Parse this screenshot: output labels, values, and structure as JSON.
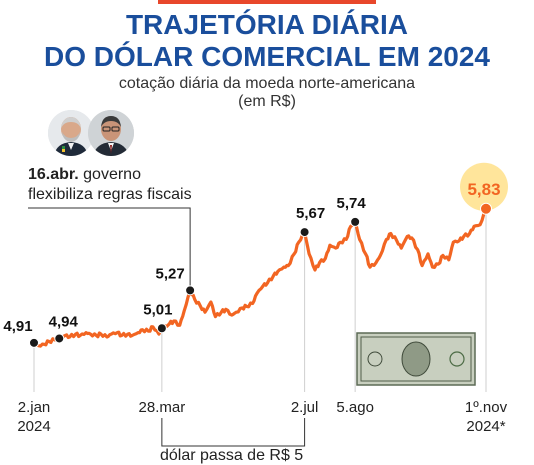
{
  "header": {
    "title_line1": "TRAJETÓRIA DIÁRIA",
    "title_line2": "DO DÓLAR COMERCIAL EM 2024",
    "subtitle_line1": "cotação diária da moeda norte-americana",
    "subtitle_line2": "(em R$)"
  },
  "annotations": {
    "april_date": "16.abr.",
    "april_text1": " governo",
    "april_text2": "flexibiliza regras fiscais",
    "march_text": "dólar passa de R$ 5"
  },
  "colors": {
    "line": "#f26522",
    "title": "#1a4e9c",
    "highlight": "#ffe08a",
    "accent": "#e8472b"
  },
  "chart_data": {
    "type": "line",
    "title": "TRAJETÓRIA DIÁRIA DO DÓLAR COMERCIAL EM 2024",
    "subtitle": "cotação diária da moeda norte-americana (em R$)",
    "ylim": [
      4.6,
      6.0
    ],
    "x_ticks": [
      {
        "date": "2024-01-02",
        "label1": "2.jan",
        "label2": "2024"
      },
      {
        "date": "2024-03-28",
        "label1": "28.mar",
        "label2": ""
      },
      {
        "date": "2024-07-02",
        "label1": "2.jul",
        "label2": ""
      },
      {
        "date": "2024-08-05",
        "label1": "5.ago",
        "label2": ""
      },
      {
        "date": "2024-11-01",
        "label1": "1º.nov",
        "label2": "2024*"
      }
    ],
    "labeled_points": [
      {
        "date": "2024-01-02",
        "value": 4.91,
        "label": "4,91"
      },
      {
        "date": "2024-01-19",
        "value": 4.94,
        "label": "4,94"
      },
      {
        "date": "2024-03-28",
        "value": 5.01,
        "label": "5,01"
      },
      {
        "date": "2024-04-16",
        "value": 5.27,
        "label": "5,27"
      },
      {
        "date": "2024-07-02",
        "value": 5.67,
        "label": "5,67"
      },
      {
        "date": "2024-08-05",
        "value": 5.74,
        "label": "5,74"
      },
      {
        "date": "2024-11-01",
        "value": 5.83,
        "label": "5,83"
      }
    ],
    "series": [
      {
        "values": [
          [
            "2024-01-02",
            4.91
          ],
          [
            "2024-01-05",
            4.89
          ],
          [
            "2024-01-09",
            4.9
          ],
          [
            "2024-01-12",
            4.92
          ],
          [
            "2024-01-16",
            4.93
          ],
          [
            "2024-01-19",
            4.94
          ],
          [
            "2024-01-23",
            4.96
          ],
          [
            "2024-01-26",
            4.95
          ],
          [
            "2024-01-30",
            4.97
          ],
          [
            "2024-02-02",
            4.96
          ],
          [
            "2024-02-06",
            4.98
          ],
          [
            "2024-02-09",
            4.97
          ],
          [
            "2024-02-13",
            4.96
          ],
          [
            "2024-02-16",
            4.97
          ],
          [
            "2024-02-20",
            4.95
          ],
          [
            "2024-02-23",
            4.97
          ],
          [
            "2024-02-27",
            4.98
          ],
          [
            "2024-03-01",
            4.96
          ],
          [
            "2024-03-05",
            4.97
          ],
          [
            "2024-03-08",
            4.96
          ],
          [
            "2024-03-12",
            4.98
          ],
          [
            "2024-03-15",
            5.0
          ],
          [
            "2024-03-19",
            4.99
          ],
          [
            "2024-03-22",
            5.02
          ],
          [
            "2024-03-26",
            4.97
          ],
          [
            "2024-03-28",
            5.01
          ],
          [
            "2024-04-02",
            5.04
          ],
          [
            "2024-04-05",
            5.06
          ],
          [
            "2024-04-09",
            5.03
          ],
          [
            "2024-04-12",
            5.13
          ],
          [
            "2024-04-16",
            5.27
          ],
          [
            "2024-04-19",
            5.21
          ],
          [
            "2024-04-23",
            5.16
          ],
          [
            "2024-04-26",
            5.12
          ],
          [
            "2024-04-30",
            5.19
          ],
          [
            "2024-05-03",
            5.09
          ],
          [
            "2024-05-07",
            5.12
          ],
          [
            "2024-05-10",
            5.14
          ],
          [
            "2024-05-14",
            5.1
          ],
          [
            "2024-05-17",
            5.12
          ],
          [
            "2024-05-21",
            5.15
          ],
          [
            "2024-05-24",
            5.16
          ],
          [
            "2024-05-28",
            5.18
          ],
          [
            "2024-05-31",
            5.25
          ],
          [
            "2024-06-04",
            5.3
          ],
          [
            "2024-06-07",
            5.32
          ],
          [
            "2024-06-11",
            5.37
          ],
          [
            "2024-06-14",
            5.4
          ],
          [
            "2024-06-18",
            5.43
          ],
          [
            "2024-06-21",
            5.44
          ],
          [
            "2024-06-25",
            5.52
          ],
          [
            "2024-06-28",
            5.6
          ],
          [
            "2024-07-02",
            5.67
          ],
          [
            "2024-07-05",
            5.52
          ],
          [
            "2024-07-09",
            5.41
          ],
          [
            "2024-07-12",
            5.46
          ],
          [
            "2024-07-16",
            5.49
          ],
          [
            "2024-07-19",
            5.58
          ],
          [
            "2024-07-23",
            5.56
          ],
          [
            "2024-07-26",
            5.6
          ],
          [
            "2024-07-30",
            5.62
          ],
          [
            "2024-08-02",
            5.71
          ],
          [
            "2024-08-05",
            5.74
          ],
          [
            "2024-08-08",
            5.62
          ],
          [
            "2024-08-12",
            5.52
          ],
          [
            "2024-08-15",
            5.43
          ],
          [
            "2024-08-19",
            5.46
          ],
          [
            "2024-08-22",
            5.51
          ],
          [
            "2024-08-26",
            5.62
          ],
          [
            "2024-08-29",
            5.66
          ],
          [
            "2024-09-02",
            5.61
          ],
          [
            "2024-09-05",
            5.56
          ],
          [
            "2024-09-09",
            5.64
          ],
          [
            "2024-09-12",
            5.63
          ],
          [
            "2024-09-16",
            5.55
          ],
          [
            "2024-09-19",
            5.44
          ],
          [
            "2024-09-23",
            5.52
          ],
          [
            "2024-09-26",
            5.43
          ],
          [
            "2024-09-30",
            5.45
          ],
          [
            "2024-10-03",
            5.51
          ],
          [
            "2024-10-07",
            5.48
          ],
          [
            "2024-10-10",
            5.6
          ],
          [
            "2024-10-14",
            5.61
          ],
          [
            "2024-10-17",
            5.64
          ],
          [
            "2024-10-21",
            5.66
          ],
          [
            "2024-10-24",
            5.71
          ],
          [
            "2024-10-28",
            5.72
          ],
          [
            "2024-11-01",
            5.83
          ]
        ]
      }
    ]
  }
}
